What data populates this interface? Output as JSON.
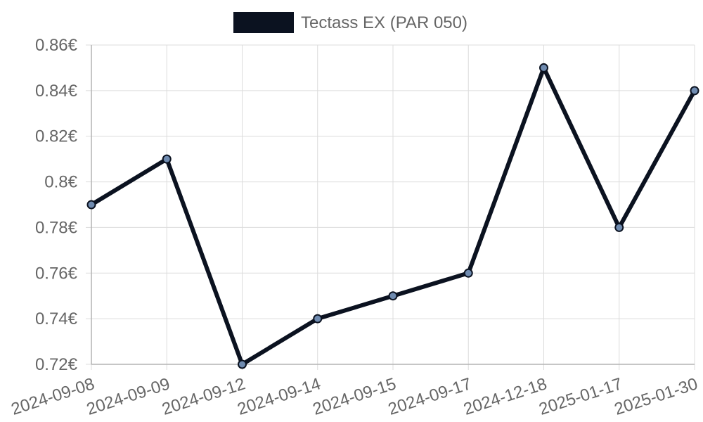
{
  "chart_data": {
    "type": "line",
    "categories": [
      "2024-09-08",
      "2024-09-09",
      "2024-09-12",
      "2024-09-14",
      "2024-09-15",
      "2024-09-17",
      "2024-12-18",
      "2025-01-17",
      "2025-01-30"
    ],
    "series": [
      {
        "name": "Tectass EX (PAR 050)",
        "values": [
          0.79,
          0.81,
          0.72,
          0.74,
          0.75,
          0.76,
          0.85,
          0.78,
          0.84
        ],
        "color": "#0b1220",
        "point_fill": "#6f8bb0"
      }
    ],
    "ylim": [
      0.72,
      0.86
    ],
    "yticks": [
      0.72,
      0.74,
      0.76,
      0.78,
      0.8,
      0.82,
      0.84,
      0.86
    ],
    "ytick_labels": [
      "0.72€",
      "0.74€",
      "0.76€",
      "0.78€",
      "0.8€",
      "0.82€",
      "0.84€",
      "0.86€"
    ],
    "xlabel": "",
    "ylabel": "",
    "grid": true,
    "legend_position": "top-center",
    "grid_color": "#dcdcdc",
    "axis_color": "#b3b3b3"
  }
}
